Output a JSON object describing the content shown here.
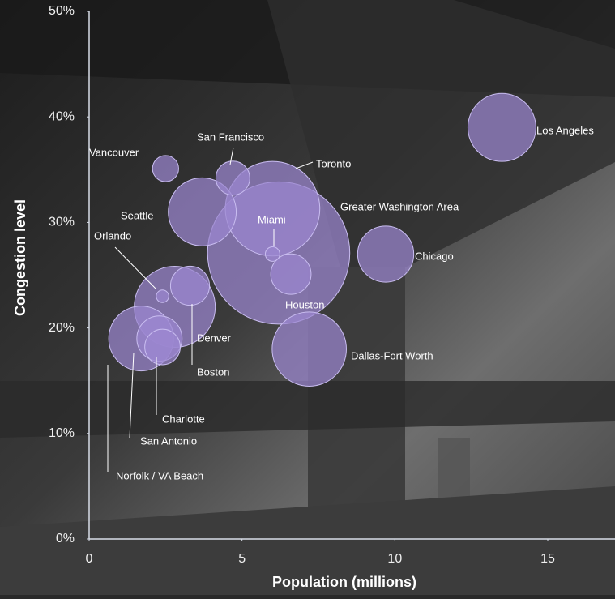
{
  "chart_data": {
    "type": "bubble",
    "x_label": "Population (millions)",
    "y_label": "Congestion level",
    "xlim": [
      0,
      17.2
    ],
    "xticks": [
      0,
      5,
      10,
      15
    ],
    "ylim": [
      0,
      50
    ],
    "yticks": [
      {
        "value": 0,
        "label": "0%"
      },
      {
        "value": 10,
        "label": "10%"
      },
      {
        "value": 20,
        "label": "20%"
      },
      {
        "value": 30,
        "label": "30%"
      },
      {
        "value": 40,
        "label": "40%"
      },
      {
        "value": 50,
        "label": "50%"
      }
    ],
    "color": "#9b87d0",
    "labels": [
      "Greater Washington Area",
      "Toronto",
      "Denver",
      "Dallas-Fort Worth",
      "Los Angeles",
      "Seattle",
      "Norfolk / VA Beach",
      "Chicago",
      "San Antonio",
      "Houston",
      "Boston",
      "Charlotte",
      "San Francisco",
      "Vancouver",
      "Miami",
      "Orlando"
    ],
    "x": [
      6.2,
      6.0,
      2.8,
      7.2,
      13.5,
      3.7,
      1.7,
      9.7,
      2.3,
      6.6,
      3.3,
      2.4,
      4.7,
      2.5,
      6.0,
      2.4
    ],
    "y": [
      27.1,
      31.3,
      22.0,
      18.0,
      39.0,
      31.0,
      19.0,
      27.0,
      19.0,
      25.1,
      24.0,
      18.2,
      34.2,
      35.1,
      27.0,
      23.0
    ],
    "sizes": [
      77,
      34,
      25,
      21,
      17.6,
      17.6,
      16,
      12,
      7.8,
      6.2,
      5.8,
      4.8,
      4.4,
      2.6,
      0.8,
      0.6
    ]
  }
}
